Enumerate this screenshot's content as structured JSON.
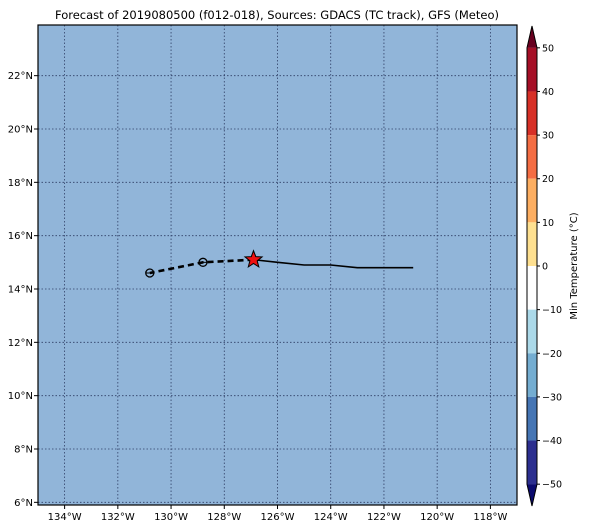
{
  "title": "Forecast of 2019080500 (f012-018), Sources: GDACS (TC track), GFS (Meteo)",
  "map": {
    "ocean_color": "#91b5d9",
    "grid_color": "#2f3f66",
    "lon_range": [
      -135,
      -117
    ],
    "lat_range": [
      5.9,
      23.9
    ],
    "lon_ticks": [
      {
        "value": -134,
        "label": "134°W"
      },
      {
        "value": -132,
        "label": "132°W"
      },
      {
        "value": -130,
        "label": "130°W"
      },
      {
        "value": -128,
        "label": "128°W"
      },
      {
        "value": -126,
        "label": "126°W"
      },
      {
        "value": -124,
        "label": "124°W"
      },
      {
        "value": -122,
        "label": "122°W"
      },
      {
        "value": -120,
        "label": "120°W"
      },
      {
        "value": -118,
        "label": "118°W"
      }
    ],
    "lat_ticks": [
      {
        "value": 6,
        "label": "6°N"
      },
      {
        "value": 8,
        "label": "8°N"
      },
      {
        "value": 10,
        "label": "10°N"
      },
      {
        "value": 12,
        "label": "12°N"
      },
      {
        "value": 14,
        "label": "14°N"
      },
      {
        "value": 16,
        "label": "16°N"
      },
      {
        "value": 18,
        "label": "18°N"
      },
      {
        "value": 20,
        "label": "20°N"
      },
      {
        "value": 22,
        "label": "22°N"
      }
    ],
    "past_track": [
      [
        -126.9,
        15.1
      ],
      [
        -126.0,
        15.0
      ],
      [
        -125.0,
        14.9
      ],
      [
        -124.0,
        14.9
      ],
      [
        -123.0,
        14.8
      ],
      [
        -122.0,
        14.8
      ],
      [
        -120.9,
        14.8
      ]
    ],
    "forecast_track": [
      [
        -126.9,
        15.1
      ],
      [
        -128.8,
        15.0
      ],
      [
        -130.8,
        14.6
      ]
    ],
    "forecast_points": [
      [
        -128.8,
        15.0
      ],
      [
        -130.8,
        14.6
      ]
    ],
    "current_position": {
      "lon": -126.9,
      "lat": 15.1,
      "color": "#ee1111"
    }
  },
  "colorbar": {
    "label": "Min Temperature (°C)",
    "min": -55,
    "max": 55,
    "ticks": [
      {
        "value": 50,
        "label": "50"
      },
      {
        "value": 40,
        "label": "40"
      },
      {
        "value": 30,
        "label": "30"
      },
      {
        "value": 20,
        "label": "20"
      },
      {
        "value": 10,
        "label": "10"
      },
      {
        "value": 0,
        "label": "0"
      },
      {
        "value": -10,
        "label": "−10"
      },
      {
        "value": -20,
        "label": "−20"
      },
      {
        "value": -30,
        "label": "−30"
      },
      {
        "value": -40,
        "label": "−40"
      },
      {
        "value": -50,
        "label": "−50"
      }
    ],
    "bands": [
      {
        "from": 50,
        "to": 55,
        "color": "#67001f"
      },
      {
        "from": 40,
        "to": 50,
        "color": "#a50f26"
      },
      {
        "from": 30,
        "to": 40,
        "color": "#d73027"
      },
      {
        "from": 20,
        "to": 30,
        "color": "#f46d43"
      },
      {
        "from": 10,
        "to": 20,
        "color": "#fdae61"
      },
      {
        "from": 0,
        "to": 10,
        "color": "#fee090"
      },
      {
        "from": -10,
        "to": 0,
        "color": "#ffffff"
      },
      {
        "from": -20,
        "to": -10,
        "color": "#abd9e9"
      },
      {
        "from": -30,
        "to": -20,
        "color": "#74add1"
      },
      {
        "from": -40,
        "to": -30,
        "color": "#4575b4"
      },
      {
        "from": -50,
        "to": -40,
        "color": "#2c2f8f"
      },
      {
        "from": -55,
        "to": -50,
        "color": "#0b0b6e"
      }
    ]
  }
}
